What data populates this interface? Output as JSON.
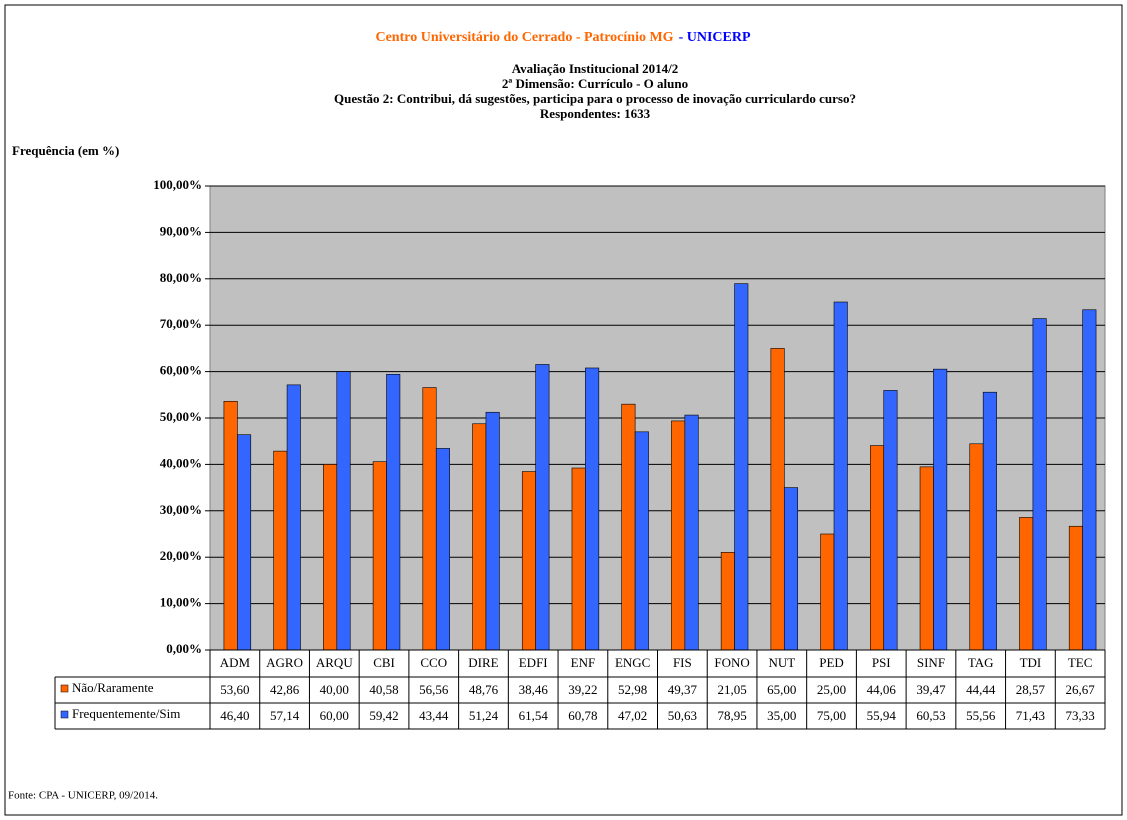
{
  "chart_data": {
    "type": "bar",
    "title": "Centro Universitário do Cerrado - Patrocínio MG",
    "title_org": "- UNICERP",
    "subtitle": [
      "Avaliação Institucional 2014/2",
      "2ª Dimensão: Currículo - O aluno",
      "Questão 2: Contribui, dá sugestões, participa para o processo de inovação curriculardo curso?",
      "Respondentes: 1633"
    ],
    "y_label": "Frequência (em %)",
    "source": "Fonte: CPA - UNICERP, 09/2014.",
    "categories": [
      "ADM",
      "AGRO",
      "ARQU",
      "CBI",
      "CCO",
      "DIRE",
      "EDFI",
      "ENF",
      "ENGC",
      "FIS",
      "FONO",
      "NUT",
      "PED",
      "PSI",
      "SINF",
      "TAG",
      "TDI",
      "TEC"
    ],
    "series": [
      {
        "name": "Não/Raramente",
        "color": "#ff6600",
        "values": [
          53.6,
          42.86,
          40,
          40.58,
          56.56,
          48.76,
          38.46,
          39.22,
          52.98,
          49.37,
          21.05,
          65,
          25,
          44.06,
          39.47,
          44.44,
          28.57,
          26.67
        ],
        "value_labels": [
          "53,60",
          "42,86",
          "40,00",
          "40,58",
          "56,56",
          "48,76",
          "38,46",
          "39,22",
          "52,98",
          "49,37",
          "21,05",
          "65,00",
          "25,00",
          "44,06",
          "39,47",
          "44,44",
          "28,57",
          "26,67"
        ]
      },
      {
        "name": "Frequentemente/Sim",
        "color": "#3366ff",
        "values": [
          46.4,
          57.14,
          60,
          59.42,
          43.44,
          51.24,
          61.54,
          60.78,
          47.02,
          50.63,
          78.95,
          35,
          75,
          55.94,
          60.53,
          55.56,
          71.43,
          73.33
        ],
        "value_labels": [
          "46,40",
          "57,14",
          "60,00",
          "59,42",
          "43,44",
          "51,24",
          "61,54",
          "60,78",
          "47,02",
          "50,63",
          "78,95",
          "35,00",
          "75,00",
          "55,94",
          "60,53",
          "55,56",
          "71,43",
          "73,33"
        ]
      }
    ],
    "ylim": [
      0,
      100
    ],
    "yticks": [
      {
        "value": 0,
        "label": "0,00%"
      },
      {
        "value": 10,
        "label": "10,00%"
      },
      {
        "value": 20,
        "label": "20,00%"
      },
      {
        "value": 30,
        "label": "30,00%"
      },
      {
        "value": 40,
        "label": "40,00%"
      },
      {
        "value": 50,
        "label": "50,00%"
      },
      {
        "value": 60,
        "label": "60,00%"
      },
      {
        "value": 70,
        "label": "70,00%"
      },
      {
        "value": 80,
        "label": "80,00%"
      },
      {
        "value": 90,
        "label": "90,00%"
      },
      {
        "value": 100,
        "label": "100,00%"
      }
    ],
    "grid": true
  }
}
